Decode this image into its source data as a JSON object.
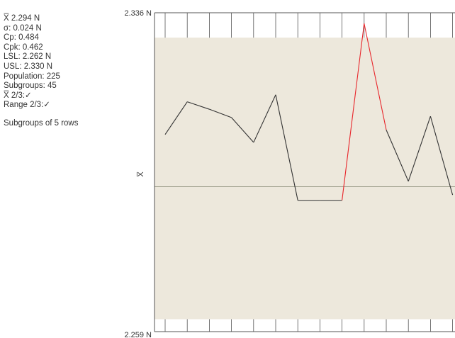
{
  "stats": {
    "lines": [
      "X̅ 2.294 N",
      "σ: 0.024 N",
      "Cp: 0.484",
      "Cpk: 0.462",
      "LSL: 2.262 N",
      "USL: 2.330 N",
      "Population: 225",
      "Subgroups: 45",
      "X̅ 2/3:✓",
      "Range 2/3:✓"
    ],
    "note": "Subgroups of 5 rows"
  },
  "colors": {
    "background": "#ffffff",
    "spec_band": "#ede8dc",
    "line_normal": "#333333",
    "line_highlight": "#e8262b",
    "grid": "#555555",
    "center_line": "#9a9a88"
  },
  "chart_data": {
    "type": "line",
    "ylabel": "X̅",
    "y_top_label": "2.336 N",
    "y_bottom_label": "2.259 N",
    "ylim": [
      2.259,
      2.336
    ],
    "lsl": 2.262,
    "usl": 2.33,
    "center": 2.294,
    "x": [
      1,
      2,
      3,
      4,
      5,
      6,
      7,
      8,
      9,
      10,
      11,
      12,
      13,
      14
    ],
    "values": [
      2.3066,
      2.3145,
      2.3127,
      2.3107,
      2.3047,
      2.3162,
      2.2907,
      2.2907,
      2.2907,
      2.3334,
      2.3077,
      2.2953,
      2.311,
      2.292
    ],
    "highlight_segments": [
      [
        8,
        10
      ]
    ]
  }
}
